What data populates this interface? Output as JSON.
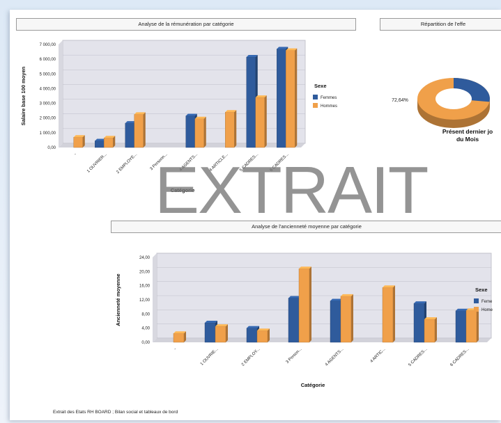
{
  "watermark": "EXTRAIT",
  "footer": "Extrait des Etats RH BOARD ; Bilan social et tableaux de bord",
  "colors": {
    "femmes": "#2f5b9c",
    "hommes": "#f0a04a"
  },
  "chart_data": [
    {
      "type": "bar",
      "title": "Analyse de la rémunération par catégorie",
      "ylabel": "Salaire base 100 moyen",
      "xlabel": "Catégorie",
      "ylim": [
        0,
        7000
      ],
      "yticks": [
        "0,00",
        "1 000,00",
        "2 000,00",
        "3 000,00",
        "4 000,00",
        "5 000,00",
        "6 000,00",
        "7 000,00"
      ],
      "categories": [
        "-",
        "1 OUVRIER...",
        "2 EMPLOYE...",
        "3 Personn...",
        "4 AGENTS...",
        "4 ARTICLE...",
        "5 CADRES...",
        "6 CADRES..."
      ],
      "legend_title": "Sexe",
      "legend_position": "right",
      "series": [
        {
          "name": "Femmes",
          "values": [
            0,
            450,
            1650,
            0,
            2150,
            0,
            6150,
            6700
          ]
        },
        {
          "name": "Hommes",
          "values": [
            700,
            650,
            2250,
            0,
            1950,
            2400,
            3400,
            6600
          ]
        }
      ]
    },
    {
      "type": "pie",
      "title": "Répartition de l'effe",
      "slice_label": "72,64%",
      "center_label": [
        "Présent dernier jo",
        "du Mois"
      ],
      "values": [
        72.64,
        27.36
      ]
    },
    {
      "type": "bar",
      "title": "Analyse de l'ancienneté moyenne par catégorie",
      "ylabel": "Ancienneté moyenne",
      "xlabel": "Catégorie",
      "ylim": [
        0,
        24
      ],
      "yticks": [
        "0,00",
        "4,00",
        "8,00",
        "12,00",
        "16,00",
        "20,00",
        "24,00"
      ],
      "categories": [
        "-",
        "1 OUVRIE...",
        "2 EMPLOY...",
        "3 Person...",
        "4 AGENTS...",
        "4 ARTIC...",
        "5 CADRES...",
        "6 CADRES..."
      ],
      "legend_title": "Sexe",
      "legend_entries": [
        "Feme",
        "Home"
      ],
      "legend_position": "right",
      "series": [
        {
          "name": "Feme",
          "values": [
            0,
            5.5,
            4,
            12.5,
            11.7,
            0,
            11,
            8.9
          ]
        },
        {
          "name": "Home",
          "values": [
            2.5,
            4.5,
            3.3,
            20.8,
            13,
            15.5,
            6.5,
            9
          ]
        }
      ]
    }
  ]
}
